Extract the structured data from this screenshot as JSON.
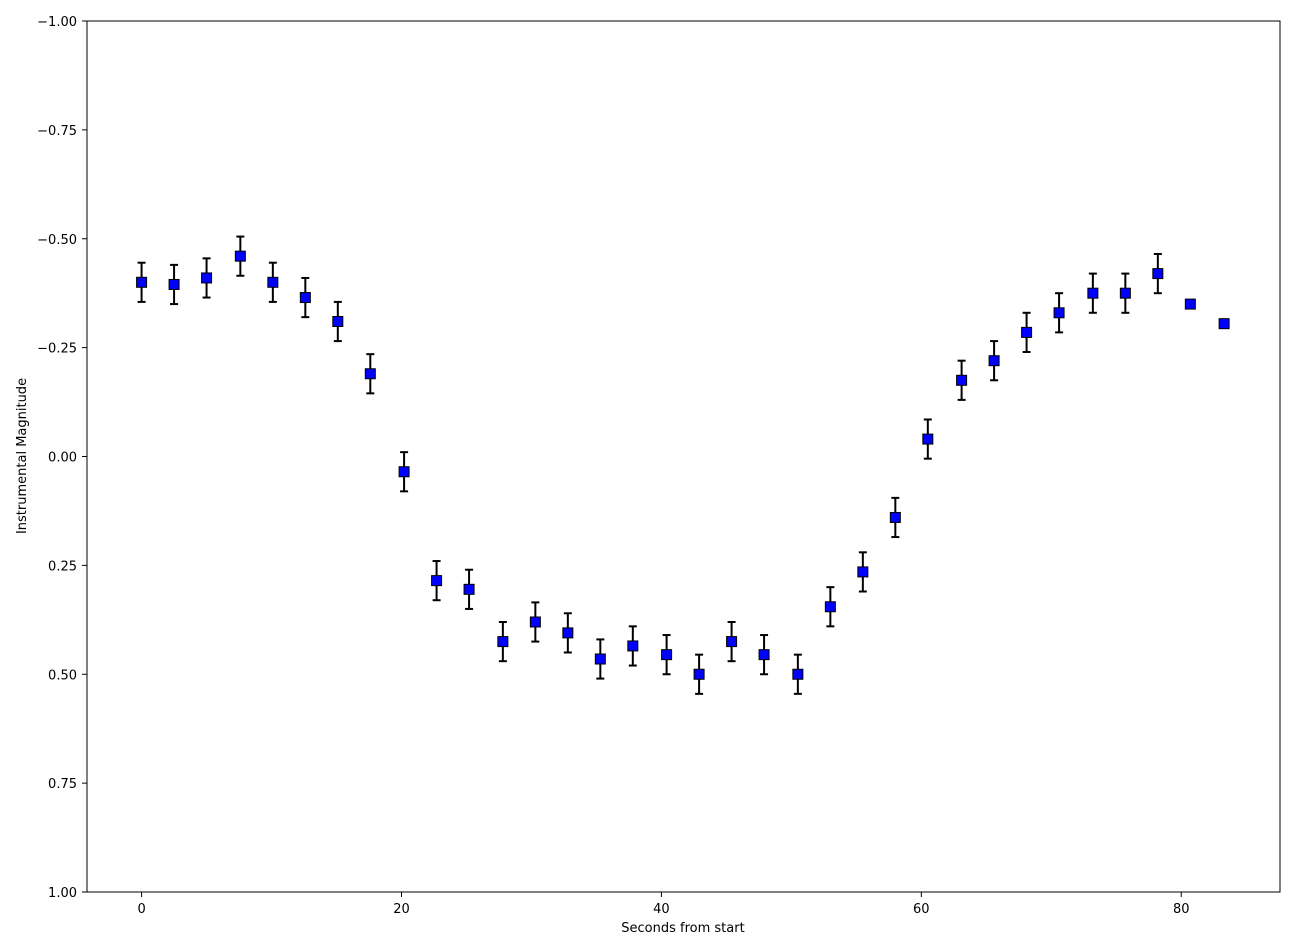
{
  "chart_data": {
    "type": "scatter",
    "title": "",
    "xlabel": "Seconds from start",
    "ylabel": "Instrumental Magnitude",
    "xlim": [
      -4.2,
      87.6
    ],
    "ylim": [
      -1.0,
      1.0
    ],
    "y_inverted": true,
    "grid": false,
    "x_ticks": [
      0,
      20,
      40,
      60,
      80
    ],
    "x_tick_labels": [
      "0",
      "20",
      "40",
      "60",
      "80"
    ],
    "y_ticks": [
      -1.0,
      -0.75,
      -0.5,
      -0.25,
      0.0,
      0.25,
      0.5,
      0.75,
      1.0
    ],
    "y_tick_labels": [
      "−1.00",
      "−0.75",
      "−0.50",
      "−0.25",
      "0.00",
      "0.25",
      "0.50",
      "0.75",
      "1.00"
    ],
    "marker": {
      "shape": "square",
      "fill": "#0000ff",
      "edge": "#000000"
    },
    "errorbar_color": "#000000",
    "series": [
      {
        "x": [
          0.0,
          2.5,
          5.0,
          7.6,
          10.1,
          12.6,
          15.1,
          17.6,
          20.2,
          22.7,
          25.2,
          27.8,
          30.3,
          32.8,
          35.3,
          37.8,
          40.4,
          42.9,
          45.4,
          47.9,
          50.5,
          53.0,
          55.5,
          58.0,
          60.5,
          63.1,
          65.6,
          68.1,
          70.6,
          73.2,
          75.7,
          78.2,
          80.7,
          83.3
        ],
        "y": [
          -0.4,
          -0.395,
          -0.41,
          -0.46,
          -0.4,
          -0.365,
          -0.31,
          -0.19,
          0.035,
          0.285,
          0.305,
          0.425,
          0.38,
          0.405,
          0.465,
          0.435,
          0.455,
          0.5,
          0.425,
          0.455,
          0.5,
          0.345,
          0.265,
          0.14,
          -0.04,
          -0.175,
          -0.22,
          -0.285,
          -0.33,
          -0.375,
          -0.375,
          -0.42,
          -0.35,
          -0.305
        ],
        "yerr": [
          0.045,
          0.045,
          0.045,
          0.045,
          0.045,
          0.045,
          0.045,
          0.045,
          0.045,
          0.045,
          0.045,
          0.045,
          0.045,
          0.045,
          0.045,
          0.045,
          0.045,
          0.045,
          0.045,
          0.045,
          0.045,
          0.045,
          0.045,
          0.045,
          0.045,
          0.045,
          0.045,
          0.045,
          0.045,
          0.045,
          0.045,
          0.045,
          0.0,
          0.0
        ]
      }
    ]
  }
}
